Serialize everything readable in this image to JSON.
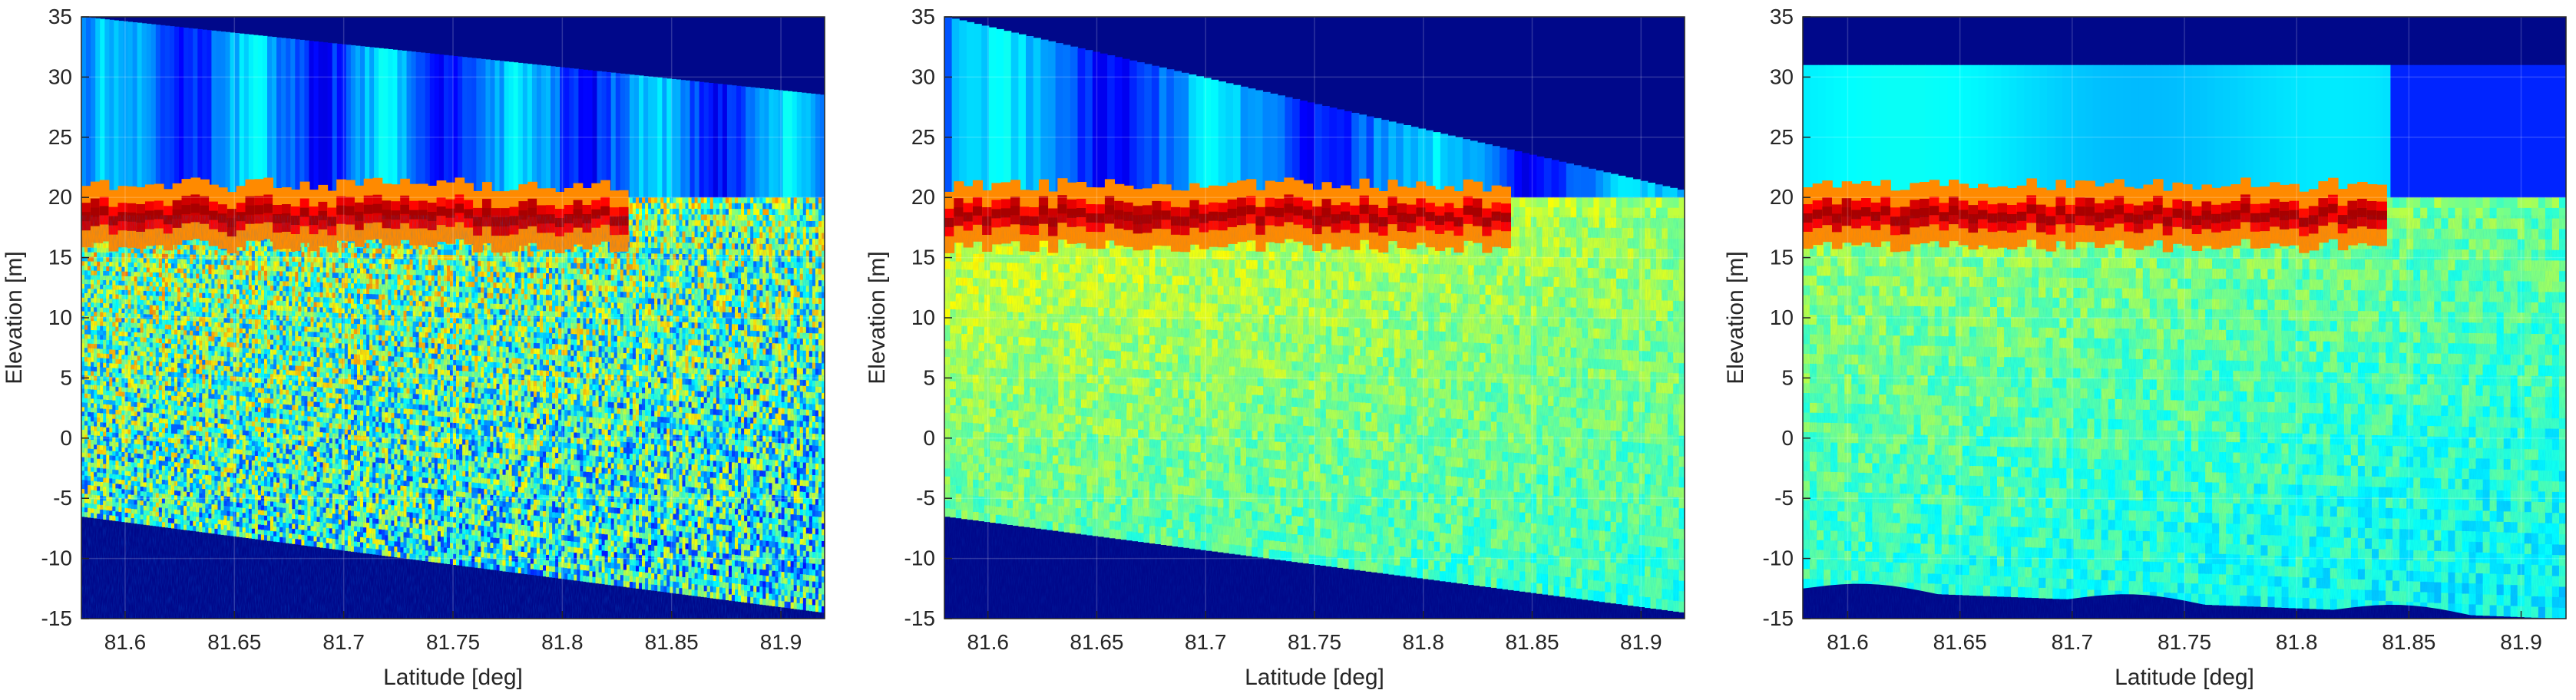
{
  "chart_data": [
    {
      "type": "heatmap",
      "title": "",
      "xlabel": "Latitude [deg]",
      "ylabel": "Elevation [m]",
      "xlim": [
        81.58,
        81.92
      ],
      "ylim": [
        -15,
        35
      ],
      "x_ticks": [
        "81.6",
        "81.65",
        "81.7",
        "81.75",
        "81.8",
        "81.85",
        "81.9"
      ],
      "y_ticks": [
        "35",
        "30",
        "25",
        "20",
        "15",
        "10",
        "5",
        "0",
        "-5",
        "-10",
        "-15"
      ],
      "grid": true,
      "colormap": "jet",
      "surface_elevation_m": 18.5,
      "data_top_m": [
        35,
        28.5
      ],
      "data_bottom_m": [
        -6.5,
        -14.5
      ],
      "ice_band_end_lat": 81.83
    },
    {
      "type": "heatmap",
      "title": "",
      "xlabel": "Latitude [deg]",
      "ylabel": "Elevation [m]",
      "xlim": [
        81.58,
        81.92
      ],
      "ylim": [
        -15,
        35
      ],
      "x_ticks": [
        "81.6",
        "81.65",
        "81.7",
        "81.75",
        "81.8",
        "81.85",
        "81.9"
      ],
      "y_ticks": [
        "35",
        "30",
        "25",
        "20",
        "15",
        "10",
        "5",
        "0",
        "-5",
        "-10",
        "-15"
      ],
      "grid": true,
      "colormap": "jet",
      "surface_elevation_m": 18.5,
      "data_top_m": [
        35,
        20.5
      ],
      "data_bottom_m": [
        -6.5,
        -14.5
      ],
      "ice_band_end_lat": 81.84
    },
    {
      "type": "heatmap",
      "title": "",
      "xlabel": "Latitude [deg]",
      "ylabel": "Elevation [m]",
      "xlim": [
        81.58,
        81.92
      ],
      "ylim": [
        -15,
        35
      ],
      "x_ticks": [
        "81.6",
        "81.65",
        "81.7",
        "81.75",
        "81.8",
        "81.85",
        "81.9"
      ],
      "y_ticks": [
        "35",
        "30",
        "25",
        "20",
        "15",
        "10",
        "5",
        "0",
        "-5",
        "-10",
        "-15"
      ],
      "grid": true,
      "colormap": "jet",
      "surface_elevation_m": 18.5,
      "data_top_m": [
        31,
        31
      ],
      "data_bottom_m": [
        -12.5,
        -15
      ],
      "ice_band_end_lat": 81.84
    }
  ]
}
